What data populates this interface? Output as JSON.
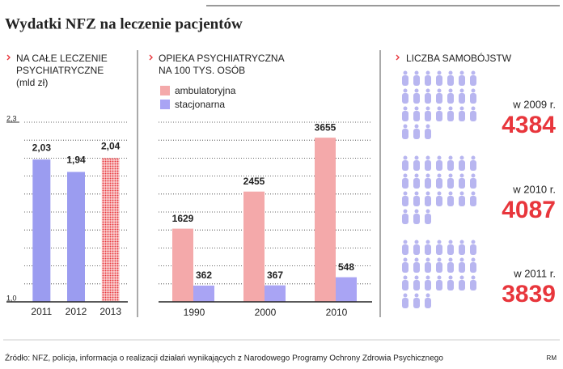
{
  "title": "Wydatki NFZ na leczenie pacjentów",
  "source": "Źródło: NFZ, policja, informacja o realizacji działań wynikających z Narodowego Programy Ochrony Zdrowia Psychicznego",
  "credit": "RM",
  "chart_data": [
    {
      "type": "bar",
      "title": "NA CAŁE LECZENIE PSYCHIATRYCZNE",
      "subtitle": "(mld zł)",
      "categories": [
        "2011",
        "2012",
        "2013"
      ],
      "values": [
        2.03,
        1.94,
        2.04
      ],
      "value_labels": [
        "2,03",
        "1,94",
        "2,04"
      ],
      "colors": [
        "#9b9cf0",
        "#9b9cf0",
        "#e8363c"
      ],
      "fill_styles": [
        "solid",
        "solid",
        "dotted"
      ],
      "ylim": [
        1.0,
        2.3
      ],
      "yticks": [
        {
          "value": 1.0,
          "label": "1,0"
        },
        {
          "value": 2.3,
          "label": "2,3"
        }
      ],
      "gridlines": [
        1.13,
        1.26,
        1.39,
        1.52,
        1.65,
        1.78,
        1.91,
        2.04,
        2.17,
        2.3
      ]
    },
    {
      "type": "grouped_bar",
      "title": "OPIEKA PSYCHIATRYCZNA NA 100 TYS. OSÓB",
      "categories": [
        "1990",
        "2000",
        "2010"
      ],
      "series": [
        {
          "name": "ambulatoryjna",
          "color": "#f4a9aa",
          "values": [
            1629,
            2455,
            3655
          ]
        },
        {
          "name": "stacjonarna",
          "color": "#a9a4f4",
          "values": [
            362,
            367,
            548
          ]
        }
      ],
      "ylim": [
        0,
        4000
      ],
      "gridlines": [
        400,
        800,
        1200,
        1600,
        2000,
        2400,
        2800,
        3200,
        3600,
        4000
      ]
    },
    {
      "type": "stat",
      "title": "LICZBA SAMOBÓJSTW",
      "categories": [
        "w 2009 r.",
        "w 2010 r.",
        "w 2011 r."
      ],
      "values": [
        4384,
        4087,
        3839
      ],
      "color": "#e8363c"
    }
  ]
}
